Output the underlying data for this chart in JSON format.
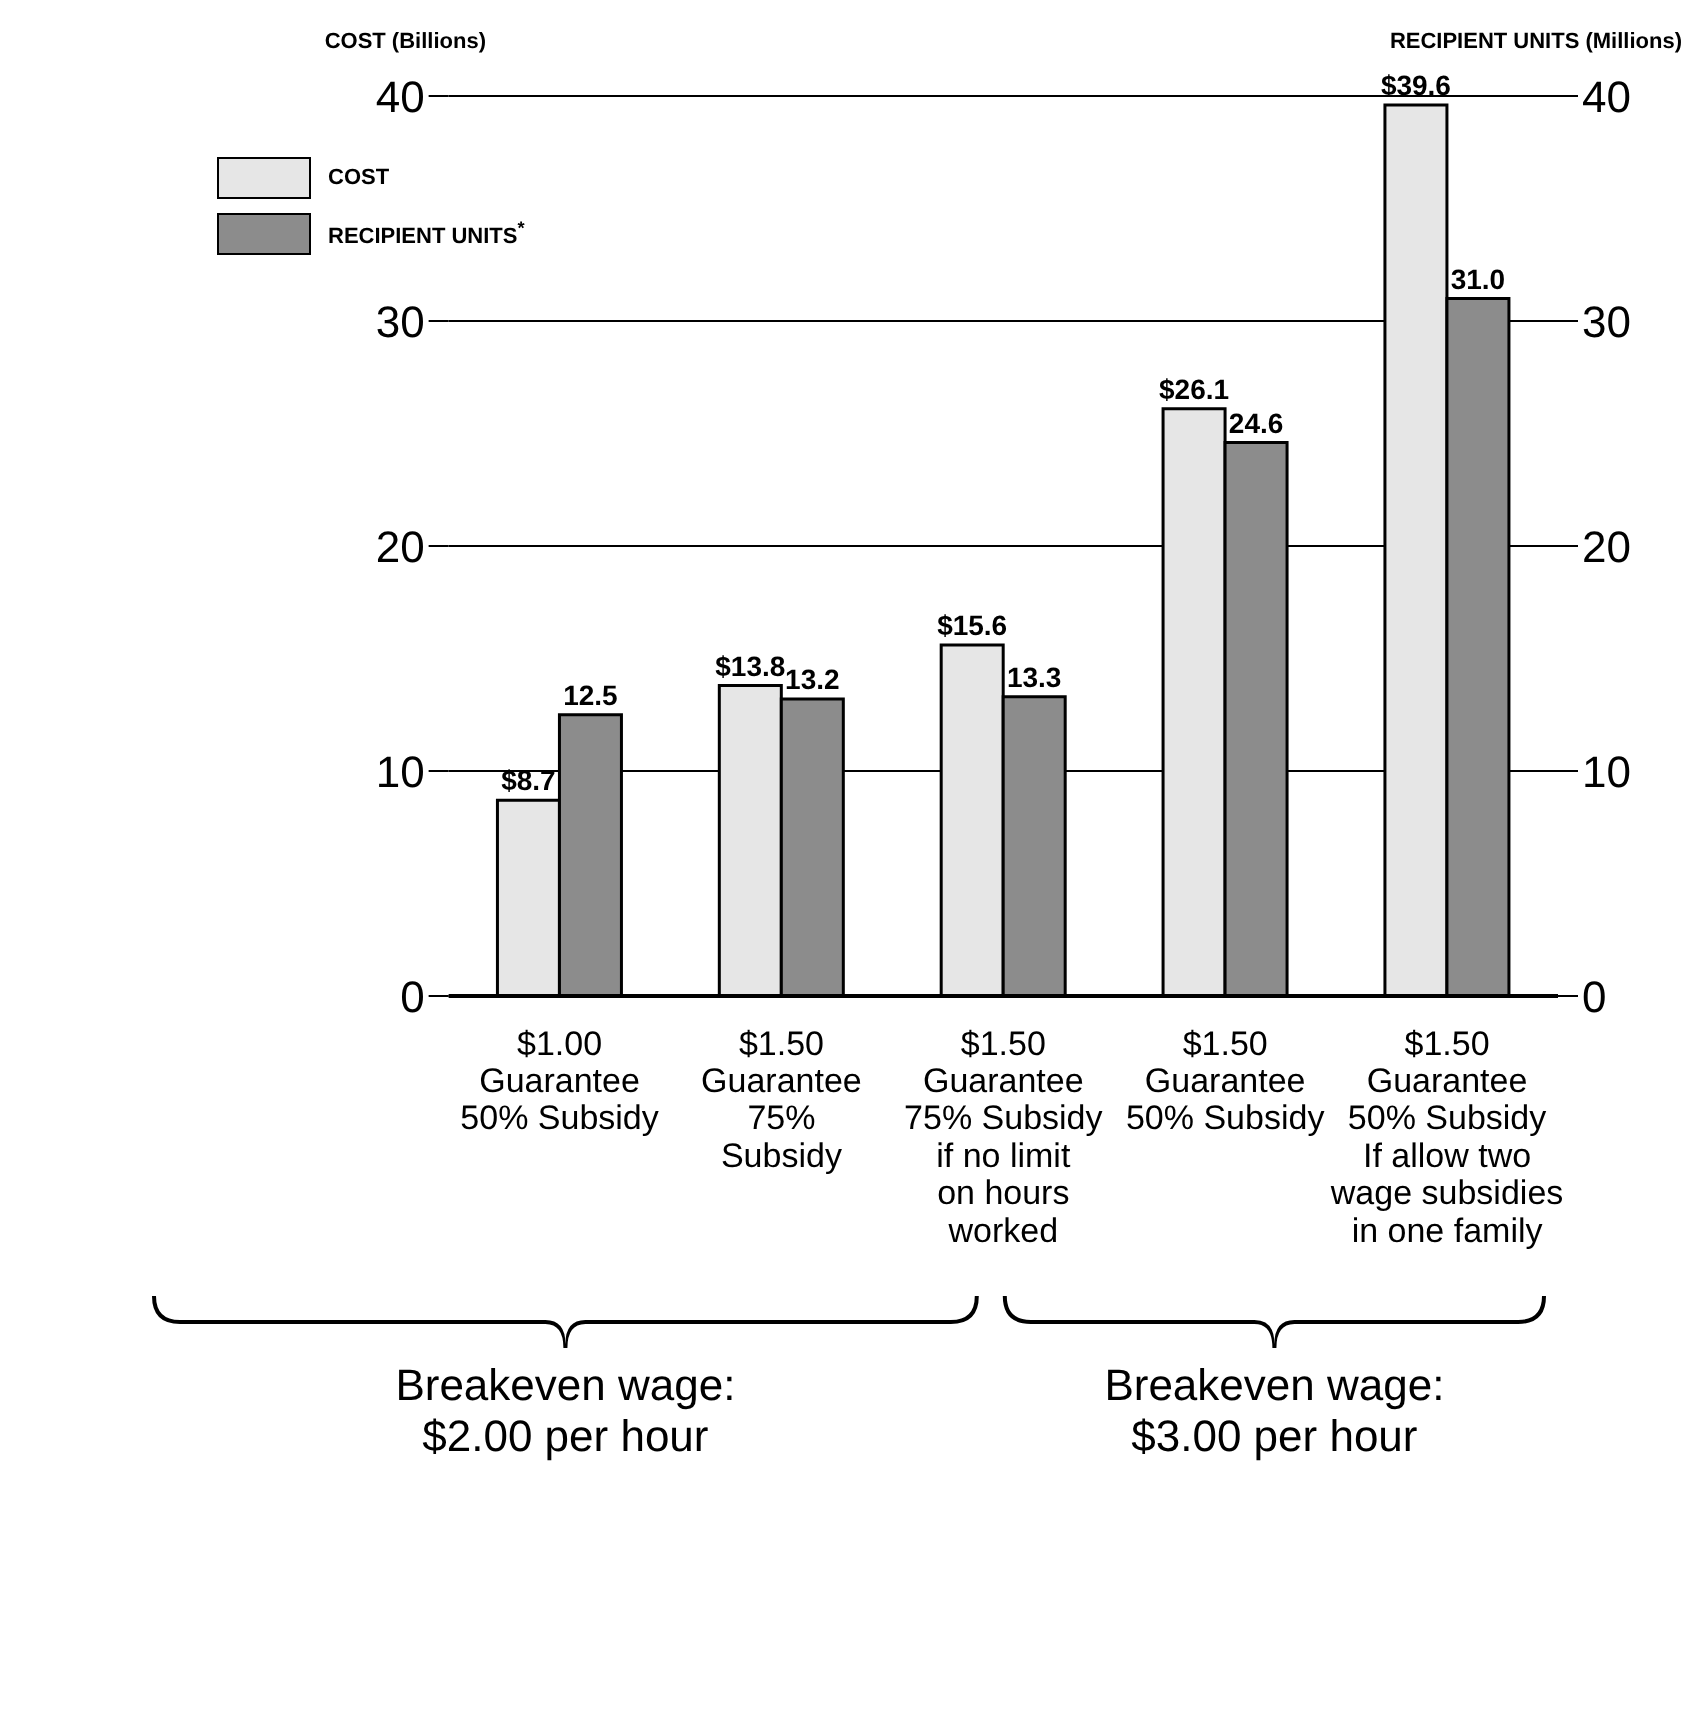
{
  "chart_data": {
    "type": "bar",
    "ylabel": "COST (Billions)",
    "y2label": "RECIPIENT UNITS (Millions)",
    "categories": [
      "$1.00\nGuarantee\n50% Subsidy",
      "$1.50\nGuarantee\n75%\nSubsidy",
      "$1.50\nGuarantee\n75% Subsidy\nif no limit\non hours\nworked",
      "$1.50\nGuarantee\n50% Subsidy",
      "$1.50\nGuarantee\n50% Subsidy\nIf allow two\nwage subsidies\nin one family"
    ],
    "series": [
      {
        "name": "COST",
        "color": "#e6e6e6",
        "values": [
          8.7,
          13.8,
          15.6,
          26.1,
          39.6
        ],
        "value_labels": [
          "$8.7",
          "$13.8",
          "$15.6",
          "$26.1",
          "$39.6"
        ]
      },
      {
        "name": "RECIPIENT UNITS$^{*}$",
        "color": "#8c8c8c",
        "axis": "y2",
        "values": [
          12.5,
          13.2,
          13.3,
          24.6,
          31.0
        ],
        "value_labels": [
          "12.5",
          "13.2",
          "13.3",
          "24.6",
          "31.0"
        ]
      }
    ],
    "ylim": [
      0,
      40
    ],
    "yticks": [
      0,
      10,
      20,
      30,
      40
    ],
    "y2lim": [
      0,
      40
    ],
    "y2ticks": [
      0,
      10,
      20,
      30,
      40
    ],
    "grid": "y",
    "legend": "top left",
    "annotations": [
      "Breakeven wage:\n$2.00 per hour",
      "Breakeven wage:\n$3.00 per hour"
    ]
  }
}
